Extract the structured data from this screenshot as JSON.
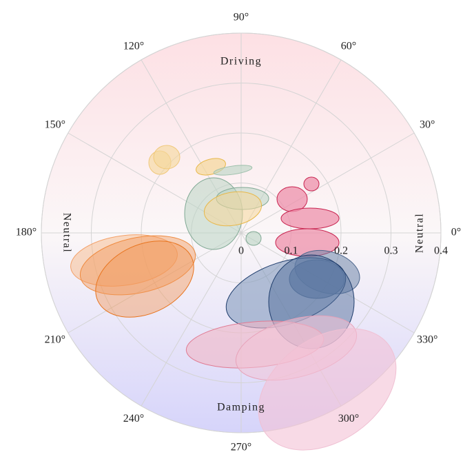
{
  "chart_data": {
    "type": "polar",
    "rlim": [
      0,
      0.4
    ],
    "rticks": [
      0,
      0.1,
      0.2,
      0.3,
      0.4
    ],
    "angleticks": [
      {
        "value": 0,
        "label": "0°"
      },
      {
        "value": 30,
        "label": "30°"
      },
      {
        "value": 60,
        "label": "60°"
      },
      {
        "value": 90,
        "label": "90°"
      },
      {
        "value": 120,
        "label": "120°"
      },
      {
        "value": 150,
        "label": "150°"
      },
      {
        "value": 180,
        "label": "180°"
      },
      {
        "value": 210,
        "label": "210°"
      },
      {
        "value": 240,
        "label": "240°"
      },
      {
        "value": 270,
        "label": "270°"
      },
      {
        "value": 300,
        "label": "300°"
      },
      {
        "value": 330,
        "label": "330°"
      }
    ],
    "region_labels": {
      "top": "Driving",
      "bottom": "Damping",
      "left": "Neutral",
      "right": "Neutral"
    },
    "grid": true
  }
}
